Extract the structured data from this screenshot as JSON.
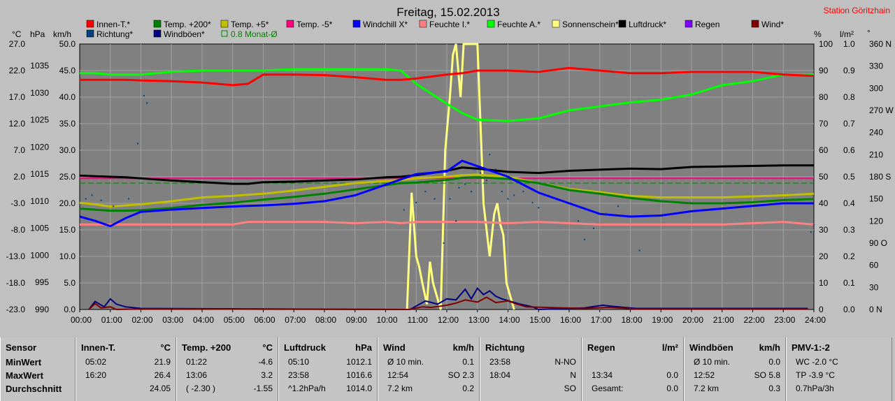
{
  "title": "Freitag, 15.02.2013",
  "station": "Station Göritzhain",
  "axis_headers": {
    "celsius": "°C",
    "hpa": "hPa",
    "kmh": "km/h",
    "percent": "%",
    "lm2": "l/m²",
    "deg": "°"
  },
  "legend": [
    {
      "label": "Innen-T.*",
      "color": "#ff0000"
    },
    {
      "label": "Temp. +200*",
      "color": "#008000"
    },
    {
      "label": "Temp. +5*",
      "color": "#c0c000"
    },
    {
      "label": "Temp. -5*",
      "color": "#ff0080"
    },
    {
      "label": "Windchill X*",
      "color": "#0000ff"
    },
    {
      "label": "Feuchte I.*",
      "color": "#ff8080"
    },
    {
      "label": "Feuchte A.*",
      "color": "#00ff00"
    },
    {
      "label": "Sonnenschein*",
      "color": "#ffff80"
    },
    {
      "label": "Luftdruck*",
      "color": "#000000"
    },
    {
      "label": "Regen",
      "color": "#8000ff"
    },
    {
      "label": "Wind*",
      "color": "#800000"
    },
    {
      "label": "Richtung*",
      "color": "#004080"
    },
    {
      "label": "Windböen*",
      "color": "#000080"
    },
    {
      "label": "0.8 Monat-Ø",
      "color": "#008000",
      "dashed": true
    }
  ],
  "chart_data": {
    "type": "line",
    "x_ticks": [
      "00:00",
      "01:00",
      "02:00",
      "03:00",
      "04:00",
      "05:00",
      "06:00",
      "07:00",
      "08:00",
      "09:00",
      "10:00",
      "11:00",
      "12:00",
      "13:00",
      "14:00",
      "15:00",
      "16:00",
      "17:00",
      "18:00",
      "19:00",
      "20:00",
      "21:00",
      "22:00",
      "23:00",
      "24:00"
    ],
    "y_axes": {
      "temp": {
        "ticks": [
          "27.0",
          "22.0",
          "17.0",
          "12.0",
          "7.0",
          "2.0",
          "-3.0",
          "-8.0",
          "-13.0",
          "-18.0",
          "-23.0"
        ],
        "range": [
          -23,
          27
        ]
      },
      "pressure": {
        "ticks": [
          "1035",
          "1030",
          "1025",
          "1020",
          "1015",
          "1010",
          "1005",
          "1000",
          "995",
          "990"
        ],
        "range": [
          990,
          1039
        ]
      },
      "wind": {
        "ticks": [
          "50.0",
          "45.0",
          "40.0",
          "35.0",
          "30.0",
          "25.0",
          "20.0",
          "15.0",
          "10.0",
          "5.0",
          "0.0"
        ],
        "range": [
          0,
          50
        ]
      },
      "percent": {
        "ticks": [
          "100",
          "90",
          "80",
          "70",
          "60",
          "50",
          "40",
          "30",
          "20",
          "10",
          "0"
        ],
        "range": [
          0,
          100
        ]
      },
      "rain": {
        "ticks": [
          "1.0",
          "0.9",
          "0.8",
          "0.7",
          "0.6",
          "0.5",
          "0.4",
          "0.3",
          "0.2",
          "0.1",
          "0.0"
        ],
        "range": [
          0,
          1
        ]
      },
      "direction": {
        "ticks": [
          "360 N",
          "330",
          "300",
          "270 W",
          "240",
          "210",
          "180 S",
          "150",
          "120",
          "90 O",
          "60",
          "30",
          "0 N"
        ],
        "range": [
          0,
          360
        ]
      }
    },
    "x_hours": [
      0,
      0.5,
      1,
      1.5,
      2,
      3,
      4,
      5,
      5.5,
      6,
      7,
      8,
      9,
      10,
      10.5,
      11,
      12,
      12.5,
      13,
      14,
      15,
      16,
      17,
      18,
      19,
      20,
      21,
      22,
      23,
      24
    ],
    "series": [
      {
        "name": "Innen-T.*",
        "axis": "percent",
        "color": "#ff0000",
        "values": [
          86.5,
          86.5,
          86.5,
          86.5,
          86.3,
          86,
          85.5,
          84.5,
          85,
          88.5,
          88.5,
          88.3,
          87.5,
          86.5,
          86.5,
          87,
          88.5,
          89,
          90,
          90,
          89.5,
          91,
          90,
          89,
          89,
          89.5,
          89.5,
          89.5,
          88.5,
          88
        ]
      },
      {
        "name": "Feuchte A.*",
        "axis": "percent",
        "color": "#00ff00",
        "values": [
          89,
          89,
          88.5,
          88.5,
          88.5,
          89.5,
          90,
          90,
          90,
          90,
          90.5,
          90.5,
          90.5,
          90.5,
          90,
          85,
          77.5,
          74,
          71.5,
          71,
          72,
          75,
          76.5,
          78,
          79,
          81,
          84.5,
          86,
          88.5,
          88.5
        ]
      },
      {
        "name": "Luftdruck*",
        "axis": "pressure",
        "values": [
          1014.7,
          1014.6,
          1014.5,
          1014.4,
          1014.2,
          1013.8,
          1013.5,
          1013.2,
          1013.2,
          1013.5,
          1013.6,
          1013.8,
          1014.0,
          1014.4,
          1014.5,
          1014.8,
          1015.6,
          1016.2,
          1016.0,
          1015.4,
          1015.2,
          1015.6,
          1015.8,
          1016.0,
          1015.9,
          1016.3,
          1016.4,
          1016.5,
          1016.6,
          1016.6
        ],
        "color": "#000000"
      },
      {
        "name": "Temp. -5*",
        "axis": "temp",
        "values": [
          1.7,
          1.7,
          1.7,
          1.7,
          1.7,
          1.7,
          1.7,
          1.7,
          1.7,
          1.7,
          1.7,
          1.7,
          1.7,
          1.7,
          1.7,
          1.7,
          1.7,
          1.7,
          1.7,
          1.7,
          1.7,
          1.7,
          1.7,
          1.7,
          1.7,
          1.7,
          1.7,
          1.7,
          1.7,
          1.7
        ],
        "color": "#ff0080"
      },
      {
        "name": "Windchill X*",
        "axis": "temp",
        "color": "#0000ff",
        "values": [
          -5.5,
          -6.3,
          -7.3,
          -5.8,
          -4.6,
          -4.2,
          -3.9,
          -3.6,
          -3.5,
          -3.4,
          -3.1,
          -2.6,
          -1.5,
          0.5,
          1.5,
          2.5,
          3.0,
          5.0,
          4.0,
          2.0,
          -1.0,
          -3.0,
          -5.0,
          -5.5,
          -5.3,
          -4.5,
          -4.0,
          -3.5,
          -3.0,
          -3.0
        ]
      },
      {
        "name": "Temp. +200*",
        "axis": "temp",
        "color": "#008000",
        "values": [
          -4.0,
          -4.2,
          -4.4,
          -4.4,
          -4.3,
          -3.9,
          -3.3,
          -2.9,
          -2.6,
          -2.3,
          -1.8,
          -1.2,
          -0.4,
          0.4,
          0.8,
          0.9,
          1.4,
          1.8,
          1.9,
          1.6,
          0.8,
          -0.5,
          -1.2,
          -2.0,
          -2.6,
          -3.0,
          -3.0,
          -2.8,
          -2.4,
          -2.2
        ]
      },
      {
        "name": "Temp. +5*",
        "axis": "temp",
        "color": "#c0c000",
        "values": [
          -2.9,
          -3.2,
          -3.6,
          -3.4,
          -3.2,
          -2.6,
          -1.9,
          -1.6,
          -1.4,
          -1.2,
          -0.6,
          0.1,
          0.8,
          1.2,
          1.4,
          1.7,
          2.0,
          2.3,
          2.4,
          2.0,
          0.8,
          -0.3,
          -0.9,
          -1.6,
          -1.9,
          -1.9,
          -1.9,
          -1.7,
          -1.5,
          -1.2
        ]
      },
      {
        "name": "Feuchte I.*",
        "axis": "percent",
        "color": "#ff8080",
        "values": [
          32,
          32,
          32,
          32,
          32,
          32,
          32,
          32,
          33,
          33,
          33,
          33,
          32.5,
          33,
          32.5,
          33,
          33,
          33,
          33,
          32.5,
          33,
          32.5,
          32,
          32,
          32,
          32,
          32,
          32.5,
          33,
          32
        ]
      },
      {
        "name": "0.8 Monat-Ø",
        "axis": "temp",
        "color": "#008000",
        "values": [
          0.8,
          0.8,
          0.8,
          0.8,
          0.8,
          0.8,
          0.8,
          0.8,
          0.8,
          0.8,
          0.8,
          0.8,
          0.8,
          0.8,
          0.8,
          0.8,
          0.8,
          0.8,
          0.8,
          0.8,
          0.8,
          0.8,
          0.8,
          0.8,
          0.8,
          0.8,
          0.8,
          0.8,
          0.8,
          0.8
        ],
        "dashed": true
      }
    ],
    "sunshine": {
      "name": "Sonnenschein*",
      "axis": "wind",
      "color": "#ffff80",
      "x": [
        10.7,
        10.85,
        11.0,
        11.1,
        11.2,
        11.35,
        11.45,
        11.55,
        11.7,
        11.8,
        11.95,
        12.1,
        12.2,
        12.3,
        12.45,
        12.55,
        12.7,
        12.85,
        12.95,
        13.0,
        13.2,
        13.4,
        13.55,
        13.65,
        13.75,
        13.85,
        13.95,
        14.05,
        14.2
      ],
      "values": [
        0,
        22,
        10,
        8,
        5,
        1,
        9,
        5,
        2,
        0,
        30,
        40,
        48,
        50,
        40,
        50,
        50,
        50,
        50,
        50,
        20,
        10,
        18,
        20,
        16,
        14,
        5,
        3,
        0
      ]
    },
    "wind": {
      "name": "Wind*",
      "axis": "wind",
      "color": "#800000",
      "x": [
        0.3,
        0.5,
        0.7,
        1.0,
        1.2,
        2.0,
        10.8,
        11.2,
        11.5,
        12.0,
        12.3,
        12.6,
        13.0,
        13.3,
        13.6,
        14.0,
        14.3,
        14.6,
        16.5,
        17.3,
        18.2,
        23.8
      ],
      "values": [
        0,
        1.1,
        0.3,
        0.5,
        0,
        0.1,
        0,
        0.5,
        0.4,
        0.8,
        1.2,
        1.8,
        1.4,
        2.3,
        1.3,
        1.6,
        1.0,
        0.5,
        0.2,
        0.4,
        0.1,
        0.1
      ]
    },
    "gusts": {
      "name": "Windböen*",
      "axis": "wind",
      "color": "#000080",
      "x": [
        0.3,
        0.5,
        0.8,
        1.0,
        1.2,
        1.5,
        2.0,
        10.8,
        11.3,
        11.7,
        12.0,
        12.3,
        12.6,
        12.8,
        13.0,
        13.2,
        13.4,
        13.6,
        13.8,
        14.1,
        14.4,
        14.8,
        15.0,
        16.5,
        17.1,
        17.4,
        18.2,
        23.8
      ],
      "values": [
        0,
        1.5,
        0.5,
        2.0,
        1.0,
        0.5,
        0.2,
        0,
        1.6,
        1.0,
        2.0,
        1.8,
        3.8,
        2.0,
        4.0,
        2.8,
        3.5,
        2.5,
        2.0,
        1.5,
        1.0,
        0.5,
        0,
        0.3,
        0.8,
        0.6,
        0.2,
        0.2
      ]
    },
    "direction_points": {
      "name": "Richtung*",
      "axis": "direction",
      "color": "#004080",
      "x": [
        0.2,
        0.4,
        0.7,
        1.1,
        1.6,
        1.9,
        2.1,
        2.2,
        10.6,
        11.0,
        11.3,
        11.6,
        11.9,
        12.1,
        12.3,
        12.4,
        12.6,
        12.8,
        12.9,
        13.1,
        13.3,
        13.4,
        13.6,
        13.8,
        14.0,
        14.2,
        14.5,
        14.8,
        15.0,
        16.3,
        16.5,
        16.8,
        17.2,
        17.6,
        18.3,
        23.9,
        24.0
      ],
      "values": [
        150,
        155,
        148,
        140,
        150,
        225,
        290,
        280,
        135,
        145,
        160,
        150,
        90,
        150,
        120,
        165,
        170,
        160,
        190,
        185,
        175,
        210,
        190,
        160,
        150,
        155,
        160,
        145,
        138,
        120,
        95,
        110,
        130,
        140,
        80,
        105,
        115
      ]
    }
  },
  "panels": [
    {
      "title": "Sensor",
      "unit": "",
      "rows": [
        {
          "label": "MinWert",
          "time": "",
          "value": ""
        },
        {
          "label": "MaxWert",
          "time": "",
          "value": ""
        },
        {
          "label": "Durchschnitt",
          "time": "",
          "value": ""
        }
      ]
    },
    {
      "title": "Innen-T.",
      "unit": "°C",
      "rows": [
        {
          "label": "",
          "time": "05:02",
          "value": "21.9"
        },
        {
          "label": "",
          "time": "16:20",
          "value": "26.4"
        },
        {
          "label": "",
          "time": "",
          "value": "24.05"
        }
      ]
    },
    {
      "title": "Temp. +200",
      "unit": "°C",
      "rows": [
        {
          "label": "",
          "time": "01:22",
          "value": "-4.6"
        },
        {
          "label": "",
          "time": "13:06",
          "value": "3.2"
        },
        {
          "label": "",
          "time": "( -2.30 )",
          "value": "-1.55"
        }
      ]
    },
    {
      "title": "Luftdruck",
      "unit": "hPa",
      "rows": [
        {
          "label": "",
          "time": "05:10",
          "value": "1012.1"
        },
        {
          "label": "",
          "time": "23:58",
          "value": "1016.6"
        },
        {
          "label": "",
          "time": "^1.2hPa/h",
          "value": "1014.0"
        }
      ]
    },
    {
      "title": "Wind",
      "unit": "km/h",
      "rows": [
        {
          "label": "",
          "time": "Ø 10 min.",
          "value": "0.1"
        },
        {
          "label": "",
          "time": "12:54",
          "value": "SO 2.3"
        },
        {
          "label": "",
          "time": "7.2 km",
          "value": "0.2"
        }
      ]
    },
    {
      "title": "Richtung",
      "unit": "",
      "rows": [
        {
          "label": "",
          "time": "23:58",
          "value": "N-NO"
        },
        {
          "label": "",
          "time": "18:04",
          "value": "N"
        },
        {
          "label": "",
          "time": "",
          "value": "SO"
        }
      ]
    },
    {
      "title": "Regen",
      "unit": "l/m²",
      "rows": [
        {
          "label": "",
          "time": "",
          "value": ""
        },
        {
          "label": "",
          "time": "13:34",
          "value": "0.0"
        },
        {
          "label": "",
          "time": "Gesamt:",
          "value": "0.0"
        }
      ]
    },
    {
      "title": "Windböen",
      "unit": "km/h",
      "rows": [
        {
          "label": "",
          "time": "Ø 10 min.",
          "value": "0.0"
        },
        {
          "label": "",
          "time": "12:52",
          "value": "SO 5.8"
        },
        {
          "label": "",
          "time": "7.2 km",
          "value": "0.3"
        }
      ]
    },
    {
      "title": "PMV-1:-2",
      "unit": "",
      "rows": [
        {
          "label": "",
          "time": "WC -2.0 °C",
          "value": ""
        },
        {
          "label": "",
          "time": "TP -3.9 °C",
          "value": ""
        },
        {
          "label": "",
          "time": "0.7hPa/3h",
          "value": ""
        }
      ]
    }
  ]
}
